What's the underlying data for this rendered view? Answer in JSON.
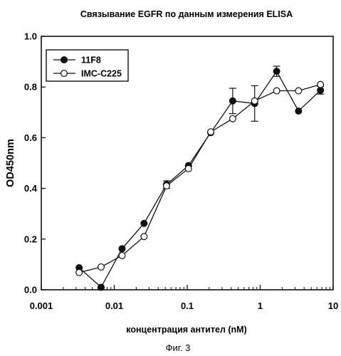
{
  "chart_data": {
    "type": "line",
    "title": "Связывание EGFR по данным измерения ELISA",
    "xlabel": "концентрация антител (nM)",
    "ylabel": "OD450nm",
    "x_scale": "log",
    "xlim": [
      0.001,
      10
    ],
    "ylim": [
      0,
      1.0
    ],
    "x_ticks": [
      0.001,
      0.01,
      0.1,
      1,
      10
    ],
    "x_tick_labels": [
      "0.001",
      "0.01",
      "0.1",
      "1",
      "10"
    ],
    "y_ticks": [
      0,
      0.2,
      0.4,
      0.6,
      0.8,
      1.0
    ],
    "y_tick_labels": [
      "0.0",
      "0.2",
      "0.4",
      "0.6",
      "0.8",
      "1.0"
    ],
    "legend_position": "top-left",
    "series": [
      {
        "name": "11F8",
        "marker": "filled-circle",
        "x": [
          0.0033,
          0.0066,
          0.0128,
          0.0256,
          0.052,
          0.104,
          0.21,
          0.42,
          0.84,
          1.68,
          3.35,
          6.7
        ],
        "y": [
          0.087,
          0.01,
          0.162,
          0.262,
          0.415,
          0.49,
          0.62,
          0.745,
          0.735,
          0.862,
          0.705,
          0.787
        ],
        "error": [
          0.005,
          0.005,
          0.01,
          0.005,
          0.015,
          0.01,
          0.005,
          0.05,
          0.07,
          0.02,
          0.005,
          0.015
        ]
      },
      {
        "name": "IMC-C225",
        "marker": "open-circle",
        "x": [
          0.0033,
          0.0066,
          0.0128,
          0.0256,
          0.052,
          0.104,
          0.21,
          0.42,
          0.84,
          1.68,
          3.35,
          6.7
        ],
        "y": [
          0.068,
          0.09,
          0.135,
          0.21,
          0.41,
          0.478,
          0.623,
          0.675,
          0.745,
          0.785,
          0.785,
          0.81
        ],
        "error": [
          0,
          0,
          0,
          0,
          0,
          0,
          0,
          0,
          0,
          0,
          0,
          0
        ]
      }
    ]
  },
  "caption": "Фиг. 3"
}
